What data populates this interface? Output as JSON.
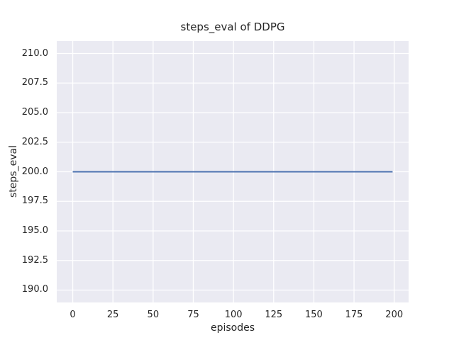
{
  "figure": {
    "background": "#ffffff",
    "text_color": "#262626"
  },
  "chart_data": {
    "type": "line",
    "title": "steps_eval of DDPG",
    "xlabel": "episodes",
    "ylabel": "steps_eval",
    "xlim": [
      -9.95,
      208.95
    ],
    "ylim": [
      188.95,
      211.05
    ],
    "xticks": [
      0,
      25,
      50,
      75,
      100,
      125,
      150,
      175,
      200
    ],
    "xtick_labels": [
      "0",
      "25",
      "50",
      "75",
      "100",
      "125",
      "150",
      "175",
      "200"
    ],
    "yticks": [
      190,
      192.5,
      195,
      197.5,
      200,
      202.5,
      205,
      207.5,
      210
    ],
    "ytick_labels": [
      "190.0",
      "192.5",
      "195.0",
      "197.5",
      "200.0",
      "202.5",
      "205.0",
      "207.5",
      "210.0"
    ],
    "grid": true,
    "grid_color": "#ffffff",
    "plot_background": "#eaeaf2",
    "legend_position": "none",
    "series": [
      {
        "name": "DDPG",
        "color": "#4c72b0",
        "x": [
          0,
          199
        ],
        "y": [
          200,
          200
        ]
      }
    ]
  }
}
